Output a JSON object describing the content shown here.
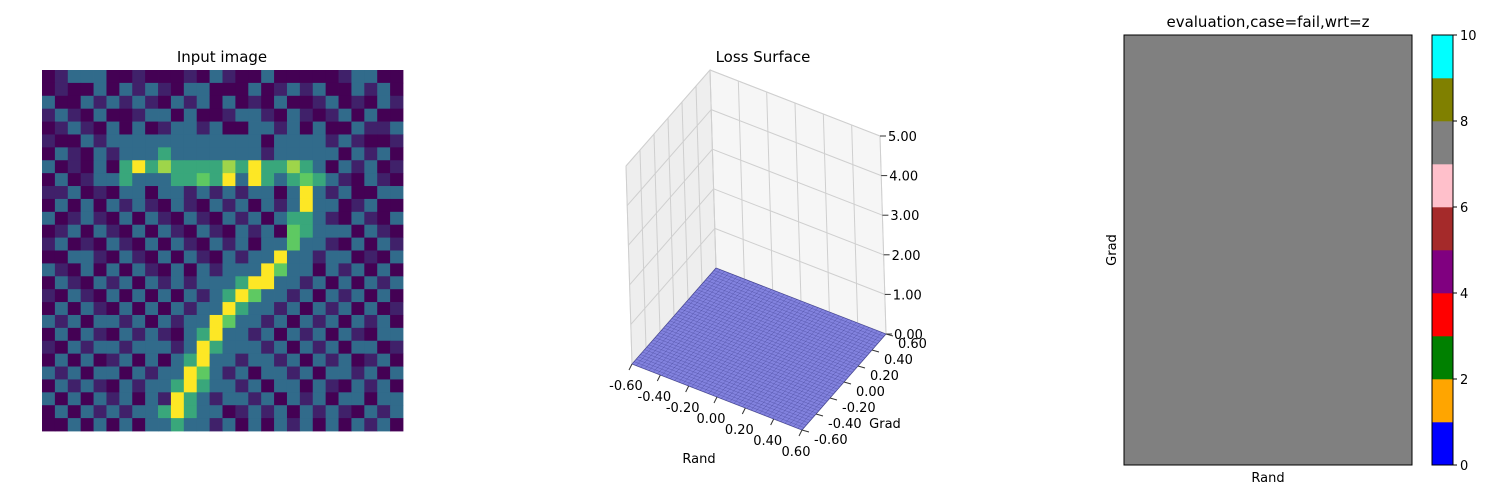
{
  "chart_data": [
    {
      "type": "heatmap",
      "title": "Input image",
      "colormap": "viridis",
      "grid": false,
      "rows": 28,
      "cols": 28,
      "values": [
        [
          0,
          0.1,
          0.35,
          0.35,
          0.35,
          0,
          0,
          0.1,
          0,
          0,
          0,
          0.1,
          0,
          0.35,
          0.1,
          0,
          0,
          0.35,
          0,
          0,
          0,
          0,
          0,
          0.1,
          0.35,
          0.35,
          0,
          0
        ],
        [
          0,
          0.1,
          0,
          0,
          0.35,
          0,
          0.35,
          0.1,
          0.35,
          0.1,
          0,
          0.35,
          0.35,
          0,
          0,
          0,
          0.35,
          0,
          0.1,
          0.35,
          0.1,
          0.35,
          0,
          0,
          0.35,
          0.1,
          0.35,
          0
        ],
        [
          0.35,
          0,
          0,
          0.35,
          0.1,
          0.35,
          0.1,
          0.35,
          0.1,
          0,
          0.35,
          0.1,
          0.35,
          0,
          0.35,
          0,
          0.1,
          0,
          0.35,
          0,
          0,
          0.1,
          0.35,
          0,
          0.1,
          0,
          0.35,
          0.1
        ],
        [
          0.1,
          0.35,
          0.1,
          0,
          0.35,
          0,
          0,
          0.1,
          0.35,
          0.35,
          0,
          0.35,
          0,
          0,
          0.1,
          0.35,
          0.35,
          0.1,
          0,
          0.35,
          0.1,
          0,
          0.1,
          0.35,
          0,
          0.35,
          0,
          0
        ],
        [
          0,
          0.1,
          0.35,
          0.1,
          0,
          0.35,
          0,
          0.35,
          0,
          0.1,
          0.35,
          0.35,
          0.1,
          0.35,
          0,
          0,
          0.35,
          0.35,
          0.1,
          0.35,
          0,
          0.35,
          0,
          0,
          0.35,
          0.1,
          0.1,
          0.35
        ],
        [
          0.1,
          0,
          0,
          0.35,
          0.1,
          0.35,
          0.35,
          0.35,
          0.35,
          0.35,
          0.35,
          0.35,
          0.35,
          0.35,
          0.35,
          0.35,
          0.35,
          0,
          0.35,
          0.35,
          0.35,
          0.35,
          0.1,
          0.35,
          0.1,
          0,
          0,
          0.1
        ],
        [
          0,
          0.35,
          0.1,
          0,
          0.35,
          0.1,
          0.35,
          0.35,
          0.35,
          0.6,
          0.35,
          0.35,
          0.35,
          0.35,
          0.35,
          0.35,
          0.35,
          0.1,
          0.35,
          0.35,
          0.35,
          0.35,
          0.35,
          0,
          0.35,
          0.1,
          0.35,
          0
        ],
        [
          0.35,
          0,
          0.1,
          0,
          0.35,
          0,
          0.6,
          1.0,
          0.6,
          0.85,
          0.6,
          0.6,
          0.6,
          0.6,
          0.85,
          0.6,
          1.0,
          0.6,
          0.6,
          0.85,
          0.6,
          0.35,
          0,
          0.35,
          0.1,
          0.35,
          0,
          0.1
        ],
        [
          0,
          0.35,
          0,
          0.1,
          0.35,
          0.35,
          0.6,
          0.35,
          0.35,
          0.35,
          0.6,
          0.6,
          0.75,
          0.6,
          1.0,
          0.35,
          1.0,
          0.6,
          0.35,
          0.6,
          0.75,
          0.6,
          0.35,
          0.1,
          0,
          0.35,
          0.1,
          0
        ],
        [
          0.1,
          0.1,
          0.35,
          0,
          0.1,
          0,
          0.35,
          0.35,
          0,
          0.35,
          0.35,
          0.1,
          0.35,
          0.1,
          0.35,
          0.1,
          0.35,
          0.35,
          0,
          0.35,
          1.0,
          0.35,
          0.1,
          0.35,
          0,
          0,
          0.35,
          0.35
        ],
        [
          0,
          0.35,
          0,
          0.35,
          0,
          0.35,
          0.1,
          0.35,
          0.1,
          0,
          0.35,
          0.1,
          0,
          0.35,
          0.1,
          0.35,
          0,
          0.35,
          0.1,
          0.35,
          1.0,
          0.35,
          0.35,
          0,
          0.1,
          0.35,
          0,
          0
        ],
        [
          0.35,
          0,
          0.1,
          0.35,
          0.1,
          0,
          0.35,
          0,
          0.35,
          0.1,
          0,
          0.35,
          0.1,
          0,
          0.35,
          0.1,
          0.35,
          0,
          0.35,
          0.6,
          0.6,
          0.35,
          0.1,
          0,
          0.35,
          0.1,
          0,
          0.35
        ],
        [
          0,
          0.1,
          0.35,
          0,
          0.35,
          0.1,
          0,
          0.35,
          0,
          0.35,
          0.1,
          0,
          0.35,
          0.1,
          0,
          0.35,
          0.1,
          0.35,
          0,
          0.75,
          0.6,
          0.35,
          0.35,
          0.35,
          0,
          0.35,
          0.1,
          0
        ],
        [
          0.1,
          0.35,
          0,
          0.1,
          0,
          0.35,
          0.1,
          0,
          0.35,
          0,
          0.35,
          0.1,
          0,
          0.35,
          0.1,
          0.35,
          0,
          0.35,
          0.35,
          0.75,
          0.35,
          0.35,
          0.1,
          0,
          0.35,
          0,
          0.35,
          0.1
        ],
        [
          0,
          0,
          0.35,
          0.35,
          0.1,
          0,
          0.35,
          0.1,
          0,
          0.35,
          0,
          0.35,
          0.1,
          0,
          0.35,
          0.1,
          0.35,
          0.35,
          1.0,
          0.35,
          0.35,
          0.1,
          0.35,
          0.35,
          0,
          0.1,
          0,
          0.35
        ],
        [
          0.35,
          0.1,
          0,
          0.35,
          0,
          0.35,
          0,
          0.35,
          0.1,
          0,
          0.35,
          0,
          0.35,
          0.1,
          0.35,
          0.35,
          0.35,
          1.0,
          0.75,
          0.35,
          0.35,
          0,
          0.35,
          0.1,
          0.35,
          0,
          0.35,
          0
        ],
        [
          0,
          0.35,
          0.1,
          0,
          0.35,
          0.1,
          0.35,
          0,
          0.35,
          0.1,
          0.35,
          0.1,
          0.35,
          0.35,
          0.35,
          0.6,
          1.0,
          1.0,
          0.35,
          0.35,
          0.1,
          0.35,
          0,
          0.35,
          0,
          0.35,
          0.1,
          0.35
        ],
        [
          0.1,
          0,
          0.35,
          0.1,
          0,
          0.35,
          0,
          0.35,
          0,
          0.35,
          0,
          0.35,
          0.1,
          0.35,
          0.6,
          1.0,
          0.75,
          0.35,
          0.35,
          0.1,
          0.35,
          0,
          0.35,
          0.1,
          0.35,
          0,
          0.35,
          0
        ],
        [
          0,
          0.35,
          0,
          0.35,
          0.1,
          0,
          0.35,
          0,
          0.35,
          0,
          0.35,
          0.1,
          0.35,
          0.35,
          1.0,
          0.6,
          0.35,
          0.35,
          0.1,
          0.35,
          0,
          0.35,
          0.1,
          0.35,
          0,
          0.35,
          0,
          0.1
        ],
        [
          0.35,
          0.1,
          0.35,
          0,
          0.35,
          0.35,
          0.1,
          0.35,
          0,
          0.35,
          0.1,
          0.35,
          0.35,
          1.0,
          0.75,
          0.35,
          0.35,
          0.1,
          0.35,
          0,
          0.35,
          0.1,
          0.35,
          0,
          0.35,
          0.1,
          0.35,
          0
        ],
        [
          0,
          0.35,
          0,
          0.35,
          0.1,
          0,
          0.35,
          0.1,
          0.35,
          0.1,
          0,
          0.35,
          0.6,
          1.0,
          0.35,
          0.35,
          0.1,
          0.35,
          0,
          0.35,
          0.1,
          0.35,
          0,
          0.35,
          0.1,
          0,
          0.35,
          0.35
        ],
        [
          0.1,
          0,
          0.35,
          0.1,
          0.35,
          0.35,
          0.1,
          0.35,
          0.35,
          0.35,
          0.1,
          0.35,
          1.0,
          0.6,
          0.35,
          0.35,
          0.35,
          0.1,
          0.35,
          0,
          0.35,
          0.1,
          0.35,
          0,
          0.35,
          0.35,
          0,
          0.1
        ],
        [
          0,
          0.35,
          0,
          0.35,
          0,
          0.1,
          0.35,
          0,
          0.35,
          0,
          0.35,
          0.6,
          1.0,
          0.35,
          0.35,
          0.1,
          0.35,
          0.35,
          0.1,
          0.35,
          0,
          0.35,
          0.1,
          0.35,
          0,
          0.1,
          0.35,
          0
        ],
        [
          0.35,
          0.1,
          0.35,
          0,
          0.35,
          0.35,
          0,
          0.35,
          0.1,
          0.35,
          0.35,
          1.0,
          0.75,
          0.35,
          0.1,
          0.35,
          0,
          0.35,
          0.35,
          0.1,
          0.35,
          0,
          0.35,
          0.35,
          0.1,
          0.35,
          0,
          0.35
        ],
        [
          0,
          0.35,
          0.1,
          0.35,
          0.1,
          0,
          0.35,
          0.1,
          0.35,
          0.35,
          0.6,
          1.0,
          0.6,
          0.35,
          0.35,
          0.1,
          0.35,
          0,
          0.35,
          0.35,
          0,
          0.35,
          0.1,
          0,
          0.35,
          0.1,
          0.35,
          0
        ],
        [
          0.35,
          0,
          0.35,
          0,
          0.35,
          0.1,
          0.35,
          0,
          0.35,
          0.1,
          1.0,
          0.6,
          0.35,
          0.1,
          0.35,
          0.35,
          0.1,
          0.35,
          0,
          0.35,
          0.1,
          0.35,
          0,
          0.35,
          0.35,
          0,
          0.35,
          0.35
        ],
        [
          0,
          0.35,
          0,
          0.35,
          0.1,
          0.35,
          0.1,
          0.35,
          0.35,
          0.6,
          1.0,
          0.6,
          0.35,
          0.35,
          0,
          0.1,
          0.35,
          0.1,
          0.35,
          0,
          0.35,
          0.1,
          0.35,
          0.1,
          0,
          0.35,
          0.1,
          0.35
        ],
        [
          0,
          0,
          0.35,
          0,
          0.35,
          0,
          0.35,
          0,
          0.35,
          0.35,
          0.6,
          0.35,
          0.35,
          0.1,
          0.35,
          0,
          0.35,
          0,
          0.35,
          0.1,
          0.35,
          0,
          0.35,
          0,
          0.35,
          0.1,
          0.35,
          0
        ]
      ]
    },
    {
      "type": "surface3d",
      "title": "Loss Surface",
      "xlabel": "Rand",
      "ylabel": "Grad",
      "zlabel": "",
      "xlim": [
        -0.6,
        0.6
      ],
      "ylim": [
        -0.6,
        0.6
      ],
      "zlim": [
        0,
        5
      ],
      "x_ticks": [
        "-0.60",
        "-0.40",
        "-0.20",
        "0.00",
        "0.20",
        "0.40",
        "0.60"
      ],
      "y_ticks": [
        "-0.60",
        "-0.40",
        "-0.20",
        "0.00",
        "0.20",
        "0.40",
        "0.60"
      ],
      "z_ticks": [
        "0.00",
        "1.00",
        "2.00",
        "3.00",
        "4.00",
        "5.00"
      ],
      "surface_z": 0.0,
      "surface_color": "#7b7bdc",
      "grid": true
    },
    {
      "type": "heatmap",
      "title": "evaluation,case=fail,wrt=z",
      "xlabel": "Rand",
      "ylabel": "Grad",
      "value": 7.5,
      "fill_color": "#808080",
      "colorbar": {
        "range": [
          0,
          10
        ],
        "ticks": [
          "0",
          "2",
          "4",
          "6",
          "8",
          "10"
        ],
        "colors": [
          "#0000ff",
          "#ffa500",
          "#008000",
          "#ff0000",
          "#800080",
          "#a52a2a",
          "#ffc0cb",
          "#808080",
          "#808000",
          "#00ffff"
        ]
      }
    }
  ]
}
